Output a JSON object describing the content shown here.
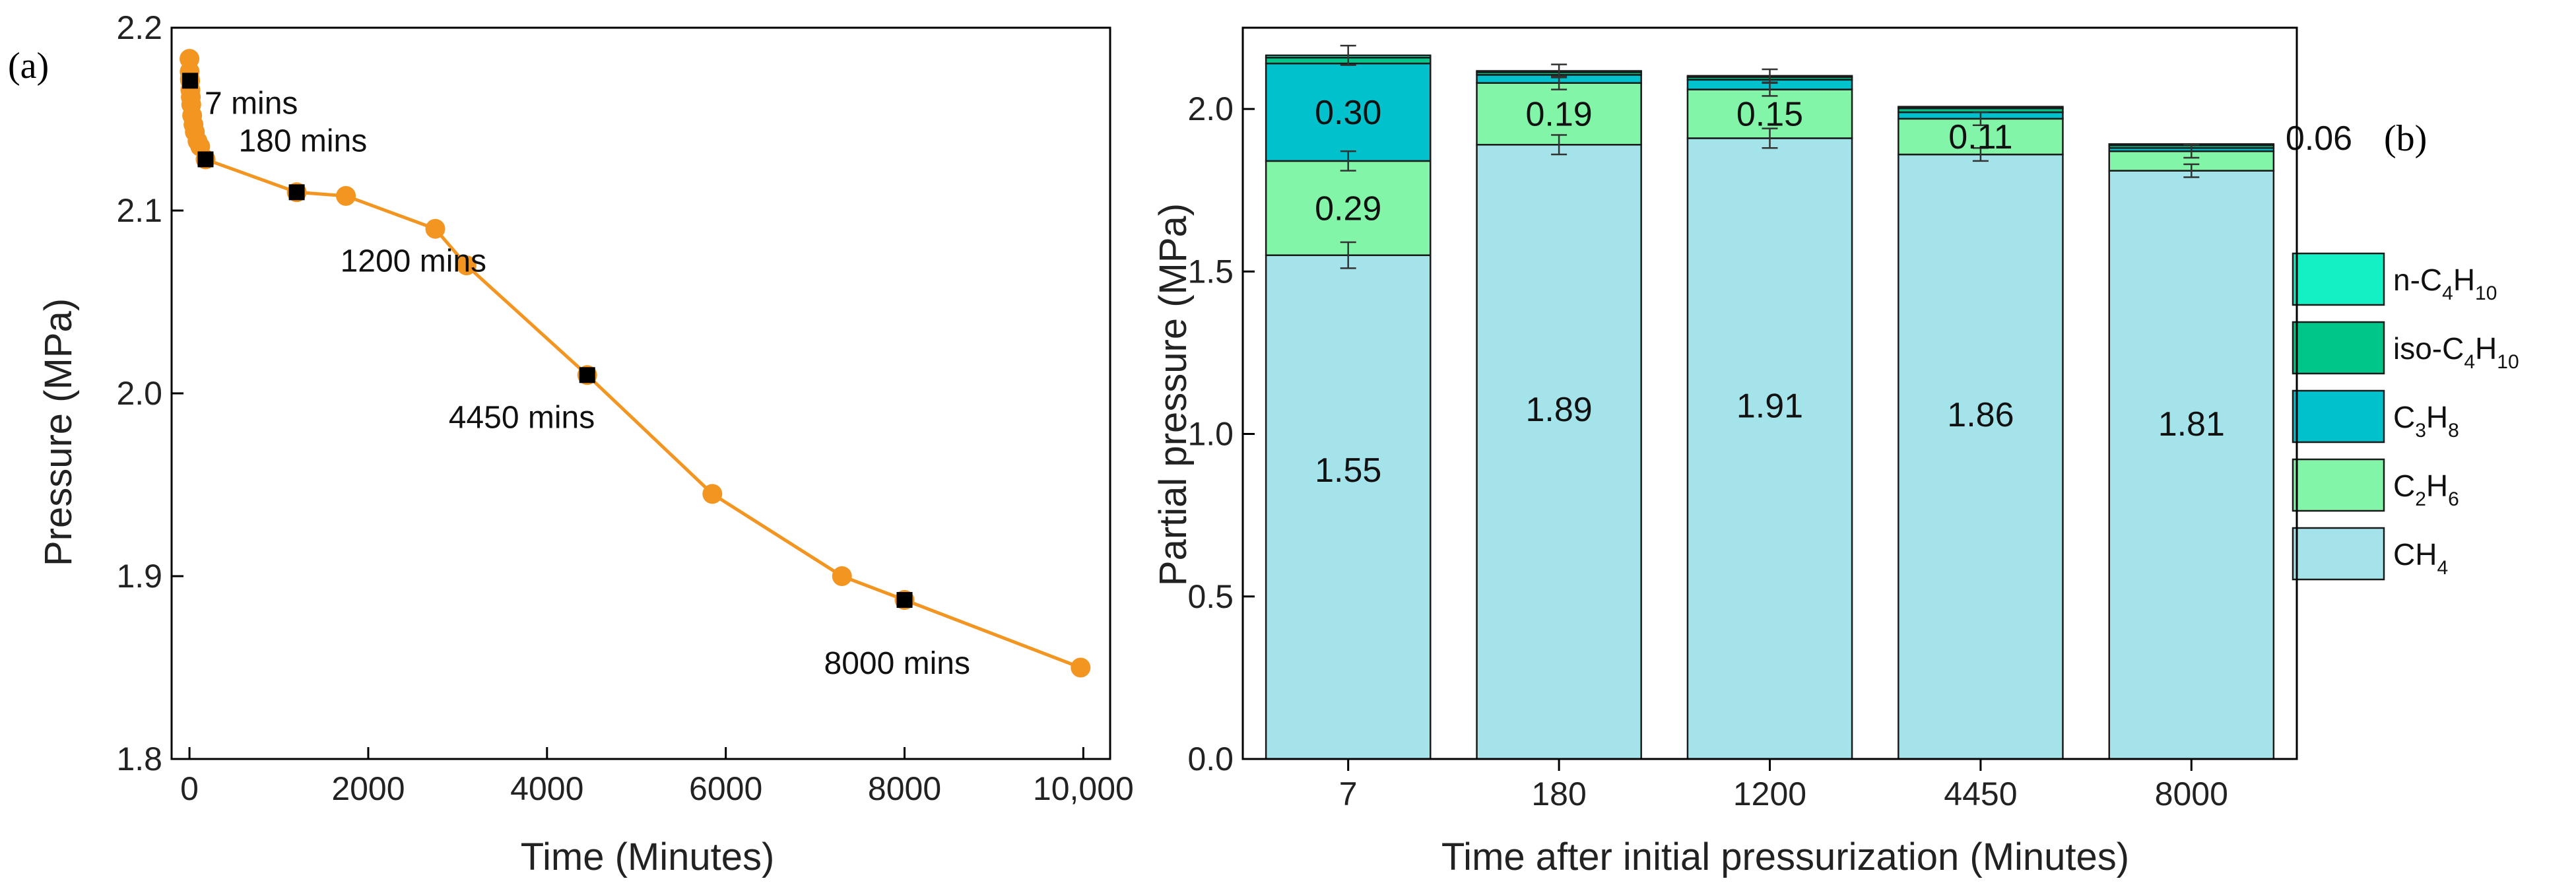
{
  "chart_data": [
    {
      "panel": "(a)",
      "type": "line",
      "xlabel": "Time (Minutes)",
      "ylabel": "Pressure (MPa)",
      "xlim": [
        -200,
        10300
      ],
      "ylim": [
        1.8,
        2.2
      ],
      "xticks": [
        0,
        2000,
        4000,
        6000,
        8000,
        10000
      ],
      "xtick_labels": [
        "0",
        "2000",
        "4000",
        "6000",
        "8000",
        "10,000"
      ],
      "yticks": [
        1.8,
        1.9,
        2.0,
        2.1,
        2.2
      ],
      "ytick_labels": [
        "1.8",
        "1.9",
        "2.0",
        "2.1",
        "2.2"
      ],
      "line_color": "#f39521",
      "marker_color": "#f39521",
      "highlight_color": "#000000",
      "series": [
        {
          "name": "Pressure",
          "x": [
            0,
            2,
            4,
            7,
            10,
            15,
            20,
            30,
            45,
            60,
            90,
            120,
            180,
            1200,
            1750,
            2750,
            3100,
            4450,
            5850,
            7300,
            8000,
            9970
          ],
          "y": [
            2.183,
            2.176,
            2.172,
            2.171,
            2.166,
            2.162,
            2.158,
            2.152,
            2.147,
            2.143,
            2.138,
            2.135,
            2.128,
            2.11,
            2.108,
            2.09,
            2.07,
            2.01,
            1.945,
            1.9,
            1.887,
            1.85
          ]
        }
      ],
      "highlighted_points": [
        {
          "x": 7,
          "y": 2.171
        },
        {
          "x": 180,
          "y": 2.128
        },
        {
          "x": 1200,
          "y": 2.11
        },
        {
          "x": 4450,
          "y": 2.01
        },
        {
          "x": 8000,
          "y": 1.887
        }
      ],
      "annotations": [
        "7 mins",
        "180 mins",
        "1200 mins",
        "4450 mins",
        "8000 mins"
      ]
    },
    {
      "panel": "(b)",
      "type": "bar",
      "stacked": true,
      "xlabel": "Time after initial pressurization (Minutes)",
      "ylabel": "Partial pressure (MPa)",
      "ylim": [
        0,
        2.25
      ],
      "yticks": [
        0.0,
        0.5,
        1.0,
        1.5,
        2.0
      ],
      "ytick_labels": [
        "0.0",
        "0.5",
        "1.0",
        "1.5",
        "2.0"
      ],
      "categories": [
        "7",
        "180",
        "1200",
        "4450",
        "8000"
      ],
      "series": [
        {
          "name": "CH4",
          "color": "#a5e3ea",
          "values": [
            1.55,
            1.89,
            1.91,
            1.86,
            1.81
          ]
        },
        {
          "name": "C2H6",
          "color": "#82f5a8",
          "values": [
            0.29,
            0.19,
            0.15,
            0.11,
            0.06
          ]
        },
        {
          "name": "C3H8",
          "color": "#00c1cc",
          "values": [
            0.3,
            0.025,
            0.03,
            0.02,
            0.01
          ]
        },
        {
          "name": "iso-C4H10",
          "color": "#00c689",
          "values": [
            0.018,
            0.008,
            0.008,
            0.012,
            0.008
          ]
        },
        {
          "name": "n-C4H10",
          "color": "#14f0c3",
          "values": [
            0.007,
            0.004,
            0.004,
            0.005,
            0.004
          ]
        }
      ],
      "error_bars": {
        "CH4": [
          0.04,
          0.03,
          0.03,
          0.02,
          0.02
        ],
        "C2H6": [
          0.03,
          0.02,
          0.02,
          0.02,
          0.02
        ],
        "total": [
          0.03,
          0.02,
          0.02,
          0.0,
          0.0
        ]
      },
      "bar_labels": {
        "CH4": [
          "1.55",
          "1.89",
          "1.91",
          "1.86",
          "1.81"
        ],
        "C2H6": [
          "0.29",
          "0.19",
          "0.15",
          "0.11",
          "0.06"
        ],
        "C3H8": [
          "0.30"
        ]
      },
      "legend": {
        "placement": "right",
        "entries": [
          {
            "main": "n-C",
            "sub1": "4",
            "main2": "H",
            "sub2": "10",
            "color": "#14f0c3"
          },
          {
            "main": "iso-C",
            "sub1": "4",
            "main2": "H",
            "sub2": "10",
            "color": "#00c689"
          },
          {
            "main": "C",
            "sub1": "3",
            "main2": "H",
            "sub2": "8",
            "color": "#00c1cc"
          },
          {
            "main": "C",
            "sub1": "2",
            "main2": "H",
            "sub2": "6",
            "color": "#82f5a8"
          },
          {
            "main": "CH",
            "sub1": "4",
            "main2": "",
            "sub2": "",
            "color": "#a5e3ea"
          }
        ]
      }
    }
  ]
}
